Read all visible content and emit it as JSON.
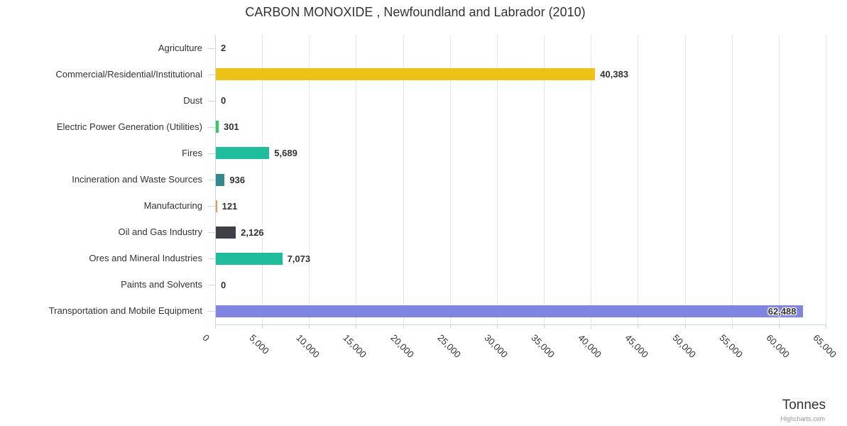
{
  "chart_data": {
    "type": "bar",
    "orientation": "horizontal",
    "title": "CARBON MONOXIDE , Newfoundland and Labrador (2010)",
    "xlabel": "Tonnes",
    "credit": "Highcharts.com",
    "categories": [
      "Agriculture",
      "Commercial/Residential/Institutional",
      "Dust",
      "Electric Power Generation (Utilities)",
      "Fires",
      "Incineration and Waste Sources",
      "Manufacturing",
      "Oil and Gas Industry",
      "Ores and Mineral Industries",
      "Paints and Solvents",
      "Transportation and Mobile Equipment"
    ],
    "values": [
      2,
      40383,
      0,
      301,
      5689,
      936,
      121,
      2126,
      7073,
      0,
      62488
    ],
    "value_labels": [
      "2",
      "40,383",
      "0",
      "301",
      "5,689",
      "936",
      "121",
      "2,126",
      "7,073",
      "0",
      "62,488"
    ],
    "bar_colors": [
      "#cccccc",
      "#ecc216",
      "#cccccc",
      "#31cc5b",
      "#1fbd9c",
      "#33898b",
      "#ef9850",
      "#3f3f46",
      "#1fbd9c",
      "#cccccc",
      "#8185e2"
    ],
    "xlim": [
      0,
      65000
    ],
    "xticks": [
      0,
      5000,
      10000,
      15000,
      20000,
      25000,
      30000,
      35000,
      40000,
      45000,
      50000,
      55000,
      60000,
      65000
    ],
    "xtick_labels": [
      "0",
      "5,000",
      "10,000",
      "15,000",
      "20,000",
      "25,000",
      "30,000",
      "35,000",
      "40,000",
      "45,000",
      "50,000",
      "55,000",
      "60,000",
      "65,000"
    ],
    "grid": true,
    "legend": "none",
    "colors": {
      "grid": "#e6e6e6",
      "axis": "#ccd6eb",
      "text": "#333333",
      "credit": "#999999"
    }
  }
}
